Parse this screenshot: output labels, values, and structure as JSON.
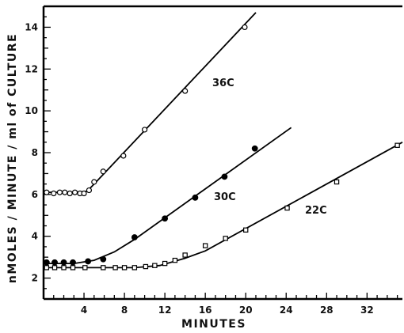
{
  "chart_data": {
    "type": "scatter",
    "title": "",
    "xlabel": "MINUTES",
    "ylabel": "nMOLES / MINUTE / ml of CULTURE",
    "xlim": [
      0,
      35.5
    ],
    "ylim": [
      1,
      15
    ],
    "xticks": [
      4,
      8,
      12,
      16,
      20,
      24,
      28,
      32
    ],
    "yticks": [
      2,
      4,
      6,
      8,
      10,
      12,
      14
    ],
    "grid": false,
    "series": [
      {
        "name": "36C",
        "marker": "open-circle",
        "x": [
          0.3,
          1.0,
          1.6,
          2.1,
          2.6,
          3.1,
          3.6,
          4.0,
          4.5,
          5.0,
          5.9,
          7.9,
          10.0,
          14.0,
          19.9
        ],
        "y": [
          6.1,
          6.05,
          6.1,
          6.1,
          6.05,
          6.1,
          6.05,
          6.05,
          6.2,
          6.6,
          7.1,
          7.85,
          9.1,
          10.95,
          14.0
        ],
        "fit": [
          [
            0,
            6.1
          ],
          [
            3.2,
            6.1
          ],
          [
            4.3,
            6.15
          ],
          [
            5.2,
            6.6
          ],
          [
            21.0,
            14.7
          ]
        ]
      },
      {
        "name": "30C",
        "marker": "filled-circle",
        "x": [
          0.3,
          1.1,
          2.0,
          2.9,
          4.4,
          5.9,
          9.0,
          12.0,
          15.0,
          17.9,
          20.9
        ],
        "y": [
          2.75,
          2.75,
          2.75,
          2.75,
          2.8,
          2.9,
          3.95,
          4.85,
          5.85,
          6.85,
          8.2
        ],
        "fit": [
          [
            0,
            2.7
          ],
          [
            3.0,
            2.7
          ],
          [
            5.0,
            2.85
          ],
          [
            7.0,
            3.25
          ],
          [
            9.0,
            3.85
          ],
          [
            24.5,
            9.2
          ]
        ]
      },
      {
        "name": "22C",
        "marker": "open-square",
        "x": [
          0.3,
          1.1,
          2.0,
          2.9,
          4.1,
          5.9,
          7.1,
          8.0,
          9.0,
          10.1,
          11.0,
          12.0,
          13.0,
          14.0,
          16.0,
          18.0,
          20.0,
          24.1,
          29.0,
          35.0
        ],
        "y": [
          2.5,
          2.5,
          2.5,
          2.5,
          2.5,
          2.5,
          2.5,
          2.5,
          2.5,
          2.55,
          2.6,
          2.7,
          2.85,
          3.1,
          3.55,
          3.9,
          4.3,
          5.35,
          6.6,
          8.35
        ],
        "fit": [
          [
            0,
            2.5
          ],
          [
            9.0,
            2.5
          ],
          [
            11.5,
            2.6
          ],
          [
            14.0,
            2.95
          ],
          [
            16.0,
            3.3
          ],
          [
            35.5,
            8.5
          ]
        ]
      }
    ],
    "annotations": [
      "36C",
      "30C",
      "22C"
    ]
  }
}
